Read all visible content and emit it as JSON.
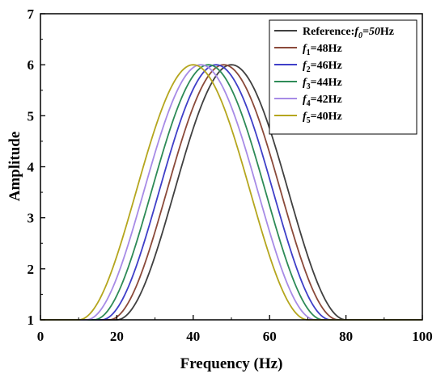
{
  "chart_data": {
    "type": "line",
    "xlabel": "Frequency (Hz)",
    "ylabel": "Amplitude",
    "xlim": [
      0,
      100
    ],
    "ylim": [
      1,
      7
    ],
    "xticks": [
      "0",
      "20",
      "40",
      "60",
      "80",
      "100"
    ],
    "yticks": [
      "1",
      "2",
      "3",
      "4",
      "5",
      "6",
      "7"
    ],
    "grid": false,
    "legend_position": "top-right",
    "peak_amplitude": 6,
    "baseline": 1,
    "series": [
      {
        "name": "Reference:f0=50Hz",
        "label_parts": [
          "Reference:",
          "f",
          "0",
          "=50",
          "Hz"
        ],
        "center": 50,
        "color": "#404040"
      },
      {
        "name": "f1=48Hz",
        "label_parts": [
          "",
          "f",
          "1",
          "=48Hz",
          ""
        ],
        "center": 48,
        "color": "#8B4A3A"
      },
      {
        "name": "f2=46Hz",
        "label_parts": [
          "",
          "f",
          "2",
          "=46Hz",
          ""
        ],
        "center": 46,
        "color": "#3F3FC8"
      },
      {
        "name": "f3=44Hz",
        "label_parts": [
          "",
          "f",
          "3",
          "=44Hz",
          ""
        ],
        "center": 44,
        "color": "#2E8B57"
      },
      {
        "name": "f4=42Hz",
        "label_parts": [
          "",
          "f",
          "4",
          "=42Hz",
          ""
        ],
        "center": 42,
        "color": "#A78BE6"
      },
      {
        "name": "f5=40Hz",
        "label_parts": [
          "",
          "f",
          "5",
          "=40Hz",
          ""
        ],
        "center": 40,
        "color": "#B5A61E"
      }
    ]
  }
}
